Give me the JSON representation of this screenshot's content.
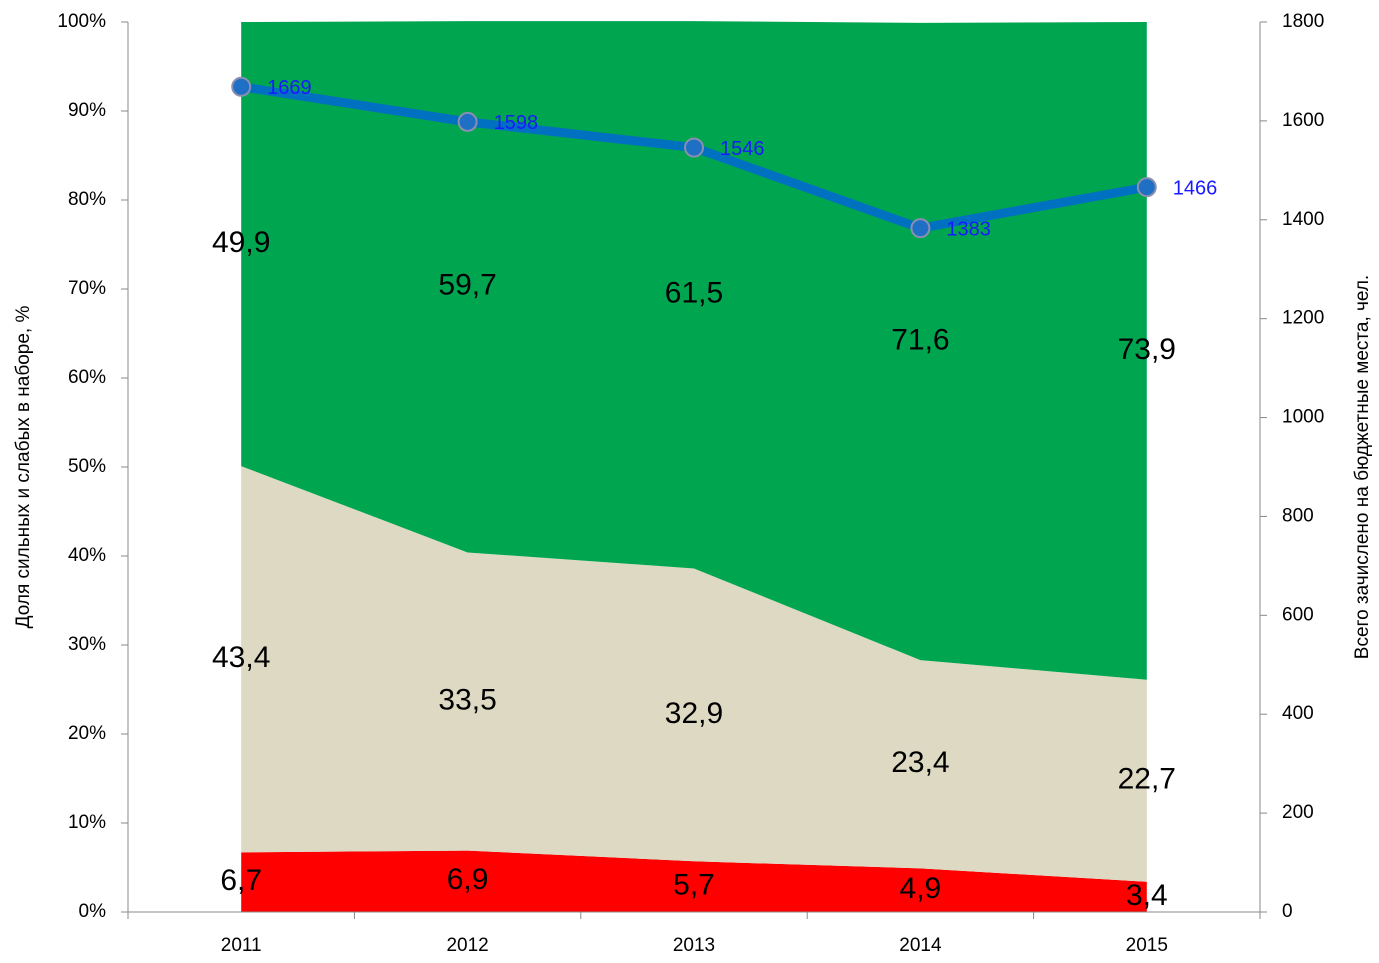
{
  "chart_data": {
    "type": "area",
    "stacked": true,
    "categories": [
      "2011",
      "2012",
      "2013",
      "2014",
      "2015"
    ],
    "y_label": "Доля сильных и слабых в наборе, %",
    "y2_label": "Всего зачислено на бюджетные места, чел.",
    "ylim": [
      0,
      100
    ],
    "yticks": [
      {
        "value": 0,
        "label": "0%"
      },
      {
        "value": 10,
        "label": "10%"
      },
      {
        "value": 20,
        "label": "20%"
      },
      {
        "value": 30,
        "label": "30%"
      },
      {
        "value": 40,
        "label": "40%"
      },
      {
        "value": 50,
        "label": "50%"
      },
      {
        "value": 60,
        "label": "60%"
      },
      {
        "value": 70,
        "label": "70%"
      },
      {
        "value": 80,
        "label": "80%"
      },
      {
        "value": 90,
        "label": "90%"
      },
      {
        "value": 100,
        "label": "100%"
      }
    ],
    "y2lim": [
      0,
      1800
    ],
    "y2ticks": [
      0,
      200,
      400,
      600,
      800,
      1000,
      1200,
      1400,
      1600,
      1800
    ],
    "grid": false,
    "series": [
      {
        "color": "#ff0000",
        "values": [
          6.7,
          6.9,
          5.7,
          4.9,
          3.4
        ],
        "value_labels": [
          "6,7",
          "6,9",
          "5,7",
          "4,9",
          "3,4"
        ]
      },
      {
        "color": "#ddd9c3",
        "values": [
          43.4,
          33.5,
          32.9,
          23.4,
          22.7
        ],
        "value_labels": [
          "43,4",
          "33,5",
          "32,9",
          "23,4",
          "22,7"
        ]
      },
      {
        "color": "#00a54f",
        "values": [
          49.9,
          59.7,
          61.5,
          71.6,
          73.9
        ],
        "value_labels": [
          "49,9",
          "59,7",
          "61,5",
          "71,6",
          "73,9"
        ]
      },
      {
        "type": "line",
        "axis": "y2",
        "color": "#0070c0",
        "values": [
          1669,
          1598,
          1546,
          1383,
          1466
        ]
      }
    ]
  }
}
